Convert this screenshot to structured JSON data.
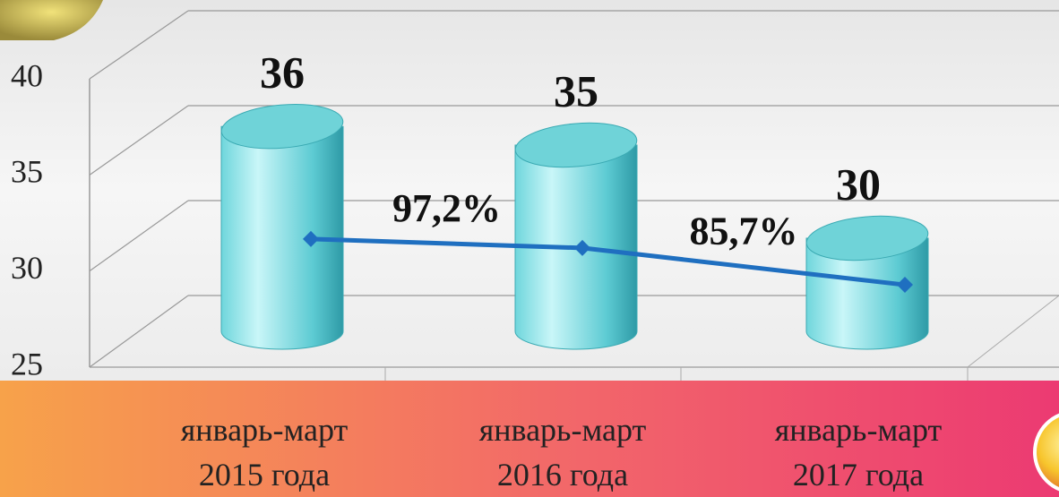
{
  "chart_data": {
    "type": "bar",
    "categories": [
      "январь-март\n2015 года",
      "январь-март\n2016 года",
      "январь-март\n2017 года"
    ],
    "series": [
      {
        "type": "bar",
        "color": "#5fcfd6",
        "values": [
          36,
          35,
          30
        ]
      },
      {
        "type": "line",
        "axis": "y2",
        "color": "#1f6fc0",
        "values": [
          100,
          97.2,
          85.7
        ],
        "value_labels": [
          null,
          "97,2%",
          "85,7%"
        ]
      }
    ],
    "ylim": [
      25,
      40
    ],
    "yticks": [
      25,
      30,
      35,
      40
    ],
    "y2lim": [
      60,
      150
    ],
    "grid": true
  }
}
